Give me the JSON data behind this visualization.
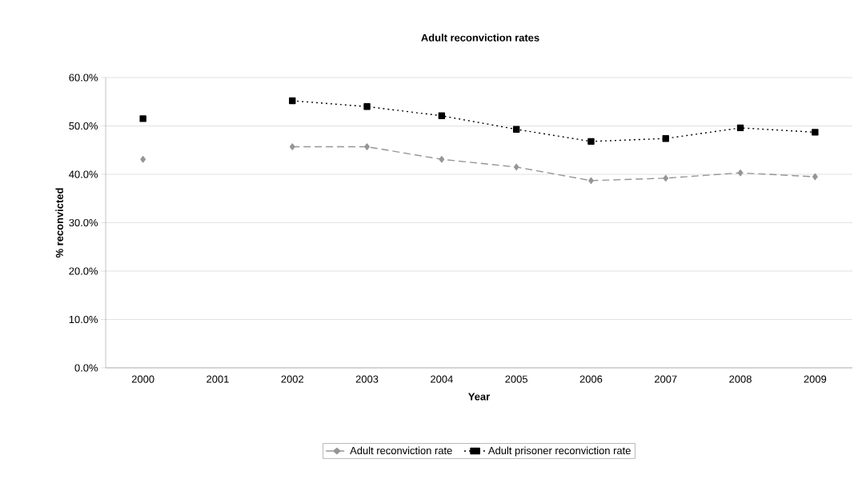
{
  "chart_data": {
    "type": "line",
    "title": "Adult reconviction rates",
    "xlabel": "Year",
    "ylabel": "% reconvicted",
    "categories": [
      "2000",
      "2001",
      "2002",
      "2003",
      "2004",
      "2005",
      "2006",
      "2007",
      "2008",
      "2009"
    ],
    "series": [
      {
        "name": "Adult reconviction rate",
        "color": "#969696",
        "marker": "diamond",
        "line_style": "dashed",
        "values": [
          43.1,
          null,
          45.7,
          45.7,
          43.1,
          41.5,
          38.7,
          39.2,
          40.3,
          39.5
        ]
      },
      {
        "name": "Adult prisoner reconviction rate",
        "color": "#000000",
        "marker": "square",
        "line_style": "dotted",
        "values": [
          51.5,
          null,
          55.2,
          54.0,
          52.1,
          49.3,
          46.8,
          47.4,
          49.6,
          48.7
        ]
      }
    ],
    "ylim": [
      0,
      60
    ],
    "yticks": [
      {
        "value": 0,
        "label": "0.0%"
      },
      {
        "value": 10,
        "label": "10.0%"
      },
      {
        "value": 20,
        "label": "20.0%"
      },
      {
        "value": 30,
        "label": "30.0%"
      },
      {
        "value": 40,
        "label": "40.0%"
      },
      {
        "value": 50,
        "label": "50.0%"
      },
      {
        "value": 60,
        "label": "60.0%"
      }
    ],
    "grid": "y",
    "legend": "bottom"
  }
}
